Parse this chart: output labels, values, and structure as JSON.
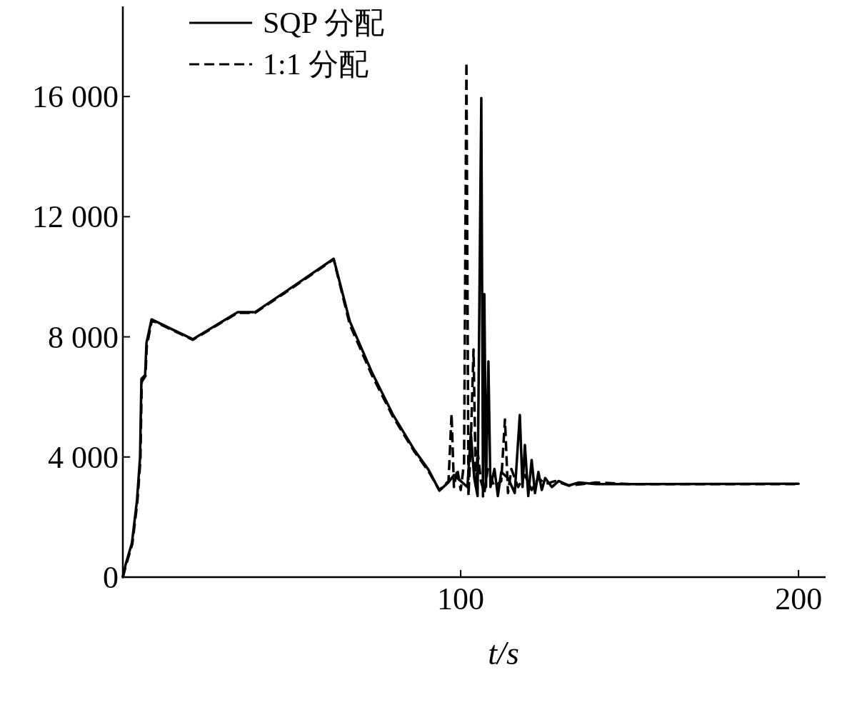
{
  "chart_data": {
    "type": "line",
    "xlabel": "t/s",
    "legend": "top left",
    "xlim": [
      0,
      208
    ],
    "ylim": [
      0,
      19000
    ],
    "xticks": [
      100,
      200
    ],
    "yticks": [
      0,
      {
        "value": 4000,
        "label": "4 000"
      },
      {
        "value": 8000,
        "label": "8 000"
      },
      {
        "value": 12000,
        "label": "12 000"
      },
      {
        "value": 16000,
        "label": "16 000"
      }
    ],
    "series": [
      {
        "name": "SQP 分配",
        "color": "#000000",
        "line_style": "solid",
        "x": [
          0,
          0.85,
          2.7,
          4.2,
          5.1,
          5.5,
          6.6,
          7.0,
          8.5,
          20.7,
          34,
          39.1,
          48.2,
          62.4,
          67.2,
          73.6,
          79.9,
          86.3,
          90.5,
          93.7,
          96.4,
          98,
          100,
          102,
          103,
          104,
          105,
          106.1,
          106.6,
          107,
          107.5,
          108.2,
          108.8,
          110,
          111,
          112,
          114,
          116,
          117.5,
          118.3,
          119,
          120,
          121,
          122,
          123,
          124,
          125,
          127,
          129,
          132,
          135,
          140,
          150,
          200
        ],
        "values": [
          0,
          430,
          1140,
          2570,
          4000,
          6600,
          6730,
          7800,
          8580,
          7920,
          8820,
          8820,
          9510,
          10600,
          8510,
          6850,
          5420,
          4230,
          3570,
          2880,
          3160,
          3400,
          3200,
          3000,
          4800,
          3300,
          2700,
          15950,
          2690,
          9420,
          3000,
          7180,
          3000,
          3600,
          2700,
          3500,
          3300,
          2800,
          5400,
          3000,
          4400,
          2700,
          3900,
          2800,
          3500,
          2900,
          3300,
          3000,
          3200,
          3050,
          3150,
          3100,
          3100,
          3110
        ]
      },
      {
        "name": "1:1 分配",
        "color": "#000000",
        "line_style": "dashed",
        "x": [
          0,
          1,
          2.8,
          4.3,
          5.2,
          5.6,
          6.7,
          7.1,
          8.6,
          20.7,
          34,
          39.1,
          48.2,
          62.4,
          67.2,
          73.6,
          79.9,
          86.3,
          90.5,
          93.7,
          96.4,
          97.3,
          98,
          99,
          100,
          101,
          101.7,
          102.3,
          103,
          103.8,
          104.5,
          105,
          106,
          107,
          108,
          110,
          112,
          113.1,
          114,
          115,
          117,
          119,
          121,
          123,
          125,
          128,
          132,
          140,
          150,
          200
        ],
        "values": [
          0,
          420,
          1100,
          2500,
          3900,
          6500,
          6700,
          7700,
          8550,
          7900,
          8800,
          8800,
          9480,
          10580,
          8400,
          6750,
          5350,
          4180,
          3520,
          2900,
          3200,
          5440,
          3000,
          3600,
          2900,
          3800,
          17140,
          2700,
          4500,
          7580,
          3000,
          4200,
          3200,
          2800,
          3600,
          3000,
          3200,
          5250,
          2800,
          3600,
          3000,
          3400,
          2900,
          3300,
          3100,
          3200,
          3050,
          3150,
          3100,
          3100
        ]
      }
    ]
  }
}
